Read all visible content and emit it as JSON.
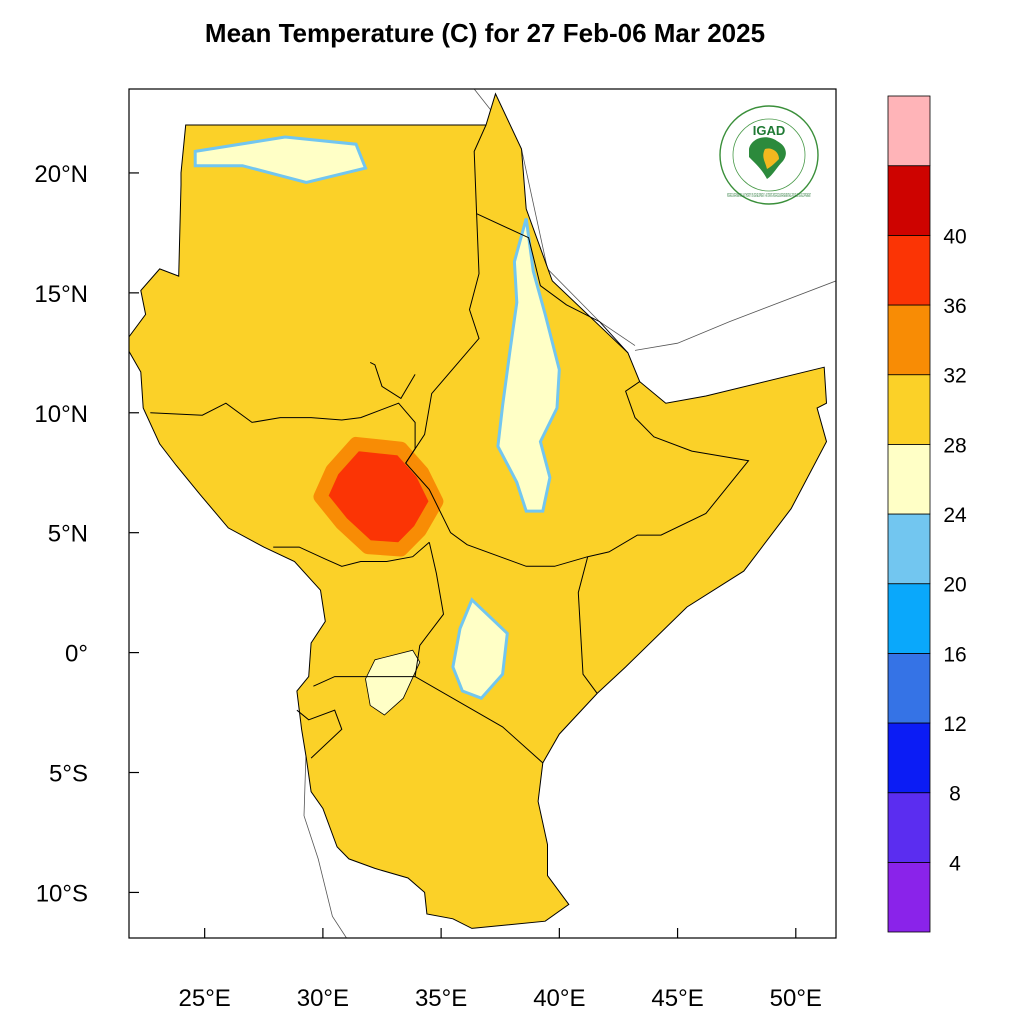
{
  "title": "Mean Temperature (C) for 27 Feb-06 Mar 2025",
  "logo": {
    "text": "IGAD",
    "ring_text": "INTERGOVERNMENTAL AUTHORITY ON DEVELOPMENT · AUTORITE INTERGOUVERNEMENTALE POUR LE DEVELOPPEMENT"
  },
  "axes": {
    "lon_range": [
      21.8,
      51.7
    ],
    "lat_range": [
      -11.9,
      23.5
    ],
    "lon_ticks": [
      {
        "value": 25,
        "label": "25°E"
      },
      {
        "value": 30,
        "label": "30°E"
      },
      {
        "value": 35,
        "label": "35°E"
      },
      {
        "value": 40,
        "label": "40°E"
      },
      {
        "value": 45,
        "label": "45°E"
      },
      {
        "value": 50,
        "label": "50°E"
      }
    ],
    "lat_ticks": [
      {
        "value": 20,
        "label": "20°N"
      },
      {
        "value": 15,
        "label": "15°N"
      },
      {
        "value": 10,
        "label": "10°N"
      },
      {
        "value": 5,
        "label": "5°N"
      },
      {
        "value": 0,
        "label": "0°"
      },
      {
        "value": -5,
        "label": "5°S"
      },
      {
        "value": -10,
        "label": "10°S"
      }
    ]
  },
  "colorbar": {
    "bins": [
      {
        "color": "#8a23ea"
      },
      {
        "color": "#5b2df0"
      },
      {
        "color": "#0b1cf5"
      },
      {
        "color": "#3573e6"
      },
      {
        "color": "#0aa8fb"
      },
      {
        "color": "#72c6f0"
      },
      {
        "color": "#ffffc6"
      },
      {
        "color": "#fbd128"
      },
      {
        "color": "#f88c05"
      },
      {
        "color": "#fb3405"
      },
      {
        "color": "#ce0300"
      },
      {
        "color": "#ffb4b8"
      }
    ],
    "labels": [
      "4",
      "8",
      "12",
      "16",
      "20",
      "24",
      "28",
      "32",
      "36",
      "40"
    ]
  },
  "map_data": {
    "legend_colors": {
      "t16_20": "#72c6f0",
      "t20_24": "#ffffc6",
      "t24_28": "#fbd128",
      "t28_32": "#f88c05",
      "t32_36": "#fb3405",
      "t8_12": "#3573e6",
      "t4_8": "#0b1cf5"
    },
    "region_outline": [
      [
        24.2,
        22
      ],
      [
        28.4,
        22
      ],
      [
        28.4,
        22
      ],
      [
        31.4,
        22
      ],
      [
        36.9,
        22
      ],
      [
        37.3,
        23.3
      ],
      [
        38.4,
        21
      ],
      [
        38.6,
        18.5
      ],
      [
        39.7,
        15.5
      ],
      [
        42.9,
        12.5
      ],
      [
        43.4,
        11.3
      ],
      [
        44.5,
        10.4
      ],
      [
        46.2,
        10.7
      ],
      [
        51.2,
        11.9
      ],
      [
        51.3,
        10.4
      ],
      [
        50.9,
        10.2
      ],
      [
        51.3,
        8.8
      ],
      [
        49.8,
        6
      ],
      [
        47.8,
        3.4
      ],
      [
        45.4,
        1.9
      ],
      [
        42.8,
        -0.6
      ],
      [
        41.6,
        -1.7
      ],
      [
        40,
        -3.4
      ],
      [
        39.3,
        -4.6
      ],
      [
        39.1,
        -6.2
      ],
      [
        39.5,
        -8
      ],
      [
        39.5,
        -9.3
      ],
      [
        40.4,
        -10.5
      ],
      [
        39.4,
        -11.2
      ],
      [
        36.3,
        -11.5
      ],
      [
        35.5,
        -11.1
      ],
      [
        34.4,
        -10.9
      ],
      [
        34.3,
        -10
      ],
      [
        33.6,
        -9.4
      ],
      [
        32.2,
        -9
      ],
      [
        31.1,
        -8.6
      ],
      [
        30.6,
        -8.1
      ],
      [
        30,
        -6.5
      ],
      [
        29.5,
        -5.8
      ],
      [
        29.3,
        -4.4
      ],
      [
        29.1,
        -3.2
      ],
      [
        28.9,
        -1.6
      ],
      [
        29.4,
        -1
      ],
      [
        29.5,
        0.4
      ],
      [
        30.1,
        1.3
      ],
      [
        29.9,
        2.6
      ],
      [
        28.8,
        3.8
      ],
      [
        27.5,
        4.4
      ],
      [
        26,
        5.2
      ],
      [
        24.8,
        6.6
      ],
      [
        23.8,
        7.8
      ],
      [
        23.1,
        8.7
      ],
      [
        22.4,
        10.2
      ],
      [
        22.3,
        11.7
      ],
      [
        21.6,
        12.9
      ],
      [
        22.5,
        14.1
      ],
      [
        22.3,
        15.1
      ],
      [
        23.1,
        16
      ],
      [
        23.9,
        15.7
      ],
      [
        24,
        19.5
      ],
      [
        24,
        20
      ],
      [
        24.2,
        22
      ]
    ],
    "hot_zone": [
      [
        31.4,
        8.7
      ],
      [
        33.3,
        8.5
      ],
      [
        34.2,
        7.5
      ],
      [
        34.8,
        6.3
      ],
      [
        34.1,
        5.1
      ],
      [
        33.3,
        4.3
      ],
      [
        31.9,
        4.4
      ],
      [
        30.8,
        5.4
      ],
      [
        29.9,
        6.5
      ],
      [
        30.4,
        7.6
      ]
    ],
    "cool_highlands": [
      [
        [
          38.6,
          18.1
        ],
        [
          38.9,
          15.9
        ],
        [
          39.4,
          14.1
        ],
        [
          40,
          11.8
        ],
        [
          39.9,
          10.2
        ],
        [
          39.2,
          8.8
        ],
        [
          39.6,
          7.3
        ],
        [
          39.3,
          5.9
        ],
        [
          38.6,
          5.9
        ],
        [
          38.2,
          7.1
        ],
        [
          37.4,
          8.6
        ],
        [
          37.6,
          10.3
        ],
        [
          37.9,
          12.5
        ],
        [
          38.2,
          14.6
        ],
        [
          38.1,
          16.3
        ]
      ],
      [
        [
          36.3,
          2.2
        ],
        [
          37.8,
          0.8
        ],
        [
          37.6,
          -0.9
        ],
        [
          36.7,
          -1.9
        ],
        [
          35.9,
          -1.6
        ],
        [
          35.5,
          -0.6
        ],
        [
          35.8,
          1
        ]
      ],
      [
        [
          24.6,
          20.9
        ],
        [
          28.4,
          21.5
        ],
        [
          31.4,
          21.2
        ],
        [
          31.8,
          20.2
        ],
        [
          29.3,
          19.6
        ],
        [
          26.6,
          20.3
        ],
        [
          24.6,
          20.3
        ]
      ]
    ],
    "borders": [
      [
        [
          36.9,
          22
        ],
        [
          36.4,
          20.9
        ],
        [
          36.5,
          18.3
        ],
        [
          36.6,
          15.8
        ],
        [
          36.2,
          14.3
        ],
        [
          36.6,
          13.1
        ],
        [
          34.6,
          10.8
        ],
        [
          34.3,
          9.1
        ],
        [
          33.5,
          7.9
        ],
        [
          34.5,
          6.8
        ],
        [
          35.4,
          5
        ],
        [
          36.1,
          4.5
        ],
        [
          38.6,
          3.6
        ],
        [
          39.8,
          3.6
        ],
        [
          41.2,
          4.0
        ],
        [
          42.1,
          4.2
        ],
        [
          43.3,
          4.9
        ],
        [
          44.3,
          4.9
        ],
        [
          46.2,
          5.8
        ],
        [
          48.0,
          8.0
        ],
        [
          45.6,
          8.4
        ],
        [
          44,
          9.0
        ],
        [
          43.2,
          9.8
        ],
        [
          42.8,
          10.9
        ],
        [
          43.4,
          11.3
        ]
      ],
      [
        [
          36.5,
          18.3
        ],
        [
          38.7,
          17.3
        ],
        [
          39.2,
          15.3
        ],
        [
          40.3,
          14.5
        ],
        [
          41.7,
          13.8
        ],
        [
          42.9,
          12.5
        ]
      ],
      [
        [
          22.7,
          10.0
        ],
        [
          24.9,
          9.9
        ],
        [
          25.9,
          10.4
        ],
        [
          27,
          9.6
        ],
        [
          28.2,
          9.8
        ],
        [
          29.5,
          9.8
        ],
        [
          30.8,
          9.7
        ],
        [
          31.6,
          9.8
        ],
        [
          33.2,
          10.4
        ],
        [
          33.9,
          9.6
        ],
        [
          33.9,
          8.5
        ],
        [
          33.5,
          7.9
        ]
      ],
      [
        [
          33.9,
          11.6
        ],
        [
          33.3,
          10.6
        ],
        [
          32.5,
          11.1
        ],
        [
          32.2,
          12.0
        ],
        [
          32.0,
          12.1
        ]
      ],
      [
        [
          34.5,
          4.6
        ],
        [
          33.8,
          4.0
        ],
        [
          32.7,
          3.8
        ],
        [
          31.6,
          3.8
        ],
        [
          30.8,
          3.6
        ],
        [
          30.1,
          3.9
        ],
        [
          29.0,
          4.4
        ],
        [
          27.9,
          4.4
        ]
      ],
      [
        [
          34.5,
          4.6
        ],
        [
          34.8,
          3.3
        ],
        [
          35.1,
          1.6
        ],
        [
          34.1,
          0.3
        ],
        [
          33.9,
          -1
        ]
      ],
      [
        [
          41.2,
          4.0
        ],
        [
          40.8,
          2.5
        ],
        [
          41.0,
          -0.9
        ],
        [
          41.6,
          -1.7
        ]
      ],
      [
        [
          29.6,
          -1.4
        ],
        [
          30.5,
          -1.0
        ],
        [
          33.9,
          -1
        ],
        [
          37.6,
          -3.1
        ],
        [
          39.3,
          -4.6
        ]
      ],
      [
        [
          28.9,
          -2.4
        ],
        [
          29.4,
          -2.8
        ],
        [
          30.5,
          -2.4
        ],
        [
          30.8,
          -3.2
        ],
        [
          29.5,
          -4.4
        ]
      ]
    ],
    "lake": [
      [
        32.2,
        -0.3
      ],
      [
        33.8,
        0.1
      ],
      [
        34.1,
        -0.4
      ],
      [
        33.4,
        -1.9
      ],
      [
        32.6,
        -2.6
      ],
      [
        32,
        -2.2
      ],
      [
        31.8,
        -1.1
      ]
    ],
    "outside_coast": [
      [
        [
          36.4,
          23.5
        ],
        [
          38.4,
          21
        ],
        [
          39.5,
          16
        ],
        [
          41.7,
          13.8
        ],
        [
          43.2,
          12.8
        ]
      ],
      [
        [
          43.2,
          12.6
        ],
        [
          45,
          12.9
        ],
        [
          47.2,
          13.8
        ],
        [
          51.7,
          15.5
        ]
      ],
      [
        [
          29.3,
          -3.8
        ],
        [
          29.2,
          -6.8
        ],
        [
          29.8,
          -8.6
        ],
        [
          30.4,
          -11
        ],
        [
          31,
          -11.9
        ]
      ]
    ]
  }
}
